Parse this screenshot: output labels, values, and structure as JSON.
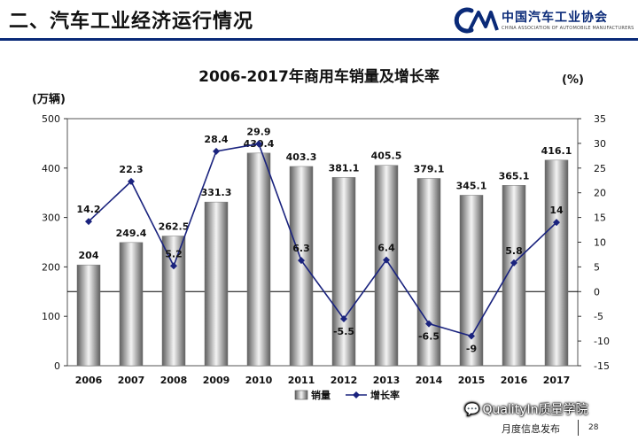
{
  "header": {
    "title": "二、汽车工业经济运行情况",
    "logo_name": "中国汽车工业协会",
    "logo_sub": "CHINA ASSOCIATION OF AUTOMOBILE MANUFACTURERS"
  },
  "chart_data": {
    "type": "bar",
    "title": "2006-2017年商用车销量及增长率",
    "categories": [
      "2006",
      "2007",
      "2008",
      "2009",
      "2010",
      "2011",
      "2012",
      "2013",
      "2014",
      "2015",
      "2016",
      "2017"
    ],
    "series": [
      {
        "name": "销量",
        "type": "bar",
        "axis": "left",
        "values": [
          204,
          249.4,
          262.5,
          331.3,
          430.4,
          403.3,
          381.1,
          405.5,
          379.1,
          345.1,
          365.1,
          416.1
        ],
        "labels": [
          "204",
          "249.4",
          "262.5",
          "331.3",
          "430.4",
          "403.3",
          "381.1",
          "405.5",
          "379.1",
          "345.1",
          "365.1",
          "416.1"
        ]
      },
      {
        "name": "增长率",
        "type": "line",
        "axis": "right",
        "values": [
          14.2,
          22.3,
          5.2,
          28.4,
          29.9,
          6.3,
          -5.5,
          6.4,
          -6.5,
          -9,
          5.8,
          14
        ],
        "labels": [
          "14.2",
          "22.3",
          "5.2",
          "28.4",
          "29.9",
          "6.3",
          "-5.5",
          "6.4",
          "-6.5",
          "-9",
          "5.8",
          "14"
        ]
      }
    ],
    "ylabel_left": "(万辆)",
    "ylabel_right": "(%)",
    "ylim_left": [
      0,
      500
    ],
    "yticks_left": [
      0,
      100,
      200,
      300,
      400,
      500
    ],
    "ylim_right": [
      -15,
      35
    ],
    "yticks_right": [
      -15,
      -10,
      -5,
      0,
      5,
      10,
      15,
      20,
      25,
      30,
      35
    ],
    "legend_position": "bottom",
    "legend": [
      "销量",
      "增长率"
    ]
  },
  "footer": {
    "watermark": "QualityIn质量学院",
    "release": "月度信息发布",
    "page": "28"
  }
}
